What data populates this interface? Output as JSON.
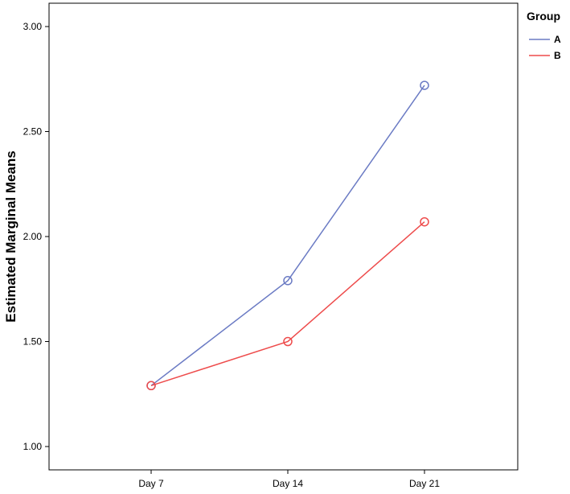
{
  "chart_data": {
    "type": "line",
    "ylabel": "Estimated Marginal Means",
    "xlabel": "",
    "categories": [
      "Day 7",
      "Day 14",
      "Day 21"
    ],
    "ylim": [
      0.9,
      3.1
    ],
    "yticks": [
      "1.00",
      "1.50",
      "2.00",
      "2.50",
      "3.00"
    ],
    "grid": false,
    "legend": {
      "title": "Group",
      "placement": "top-right"
    },
    "series": [
      {
        "name": "A",
        "color": "#6b7bc4",
        "values": [
          1.29,
          1.79,
          2.72
        ]
      },
      {
        "name": "B",
        "color": "#ee4c4c",
        "values": [
          1.29,
          1.5,
          2.07
        ]
      }
    ]
  }
}
